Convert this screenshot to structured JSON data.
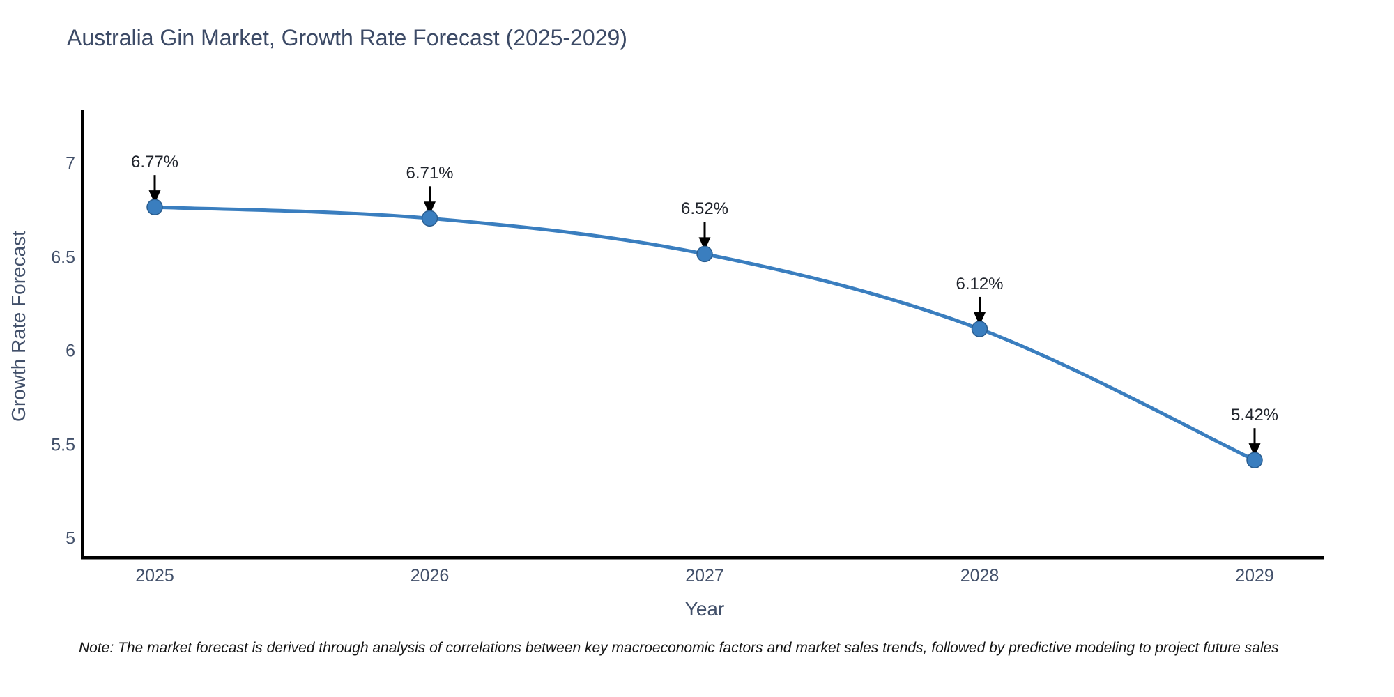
{
  "title": "Australia Gin Market, Growth Rate Forecast (2025-2029)",
  "footnote": "Note: The market forecast is derived through analysis of correlations between key macroeconomic factors and market sales trends, followed by predictive modeling to project future sales",
  "chart_data": {
    "type": "line",
    "title": "Australia Gin Market, Growth Rate Forecast (2025-2029)",
    "xlabel": "Year",
    "ylabel": "Growth Rate Forecast",
    "categories": [
      "2025",
      "2026",
      "2027",
      "2028",
      "2029"
    ],
    "series": [
      {
        "name": "Growth Rate Forecast",
        "values": [
          6.77,
          6.71,
          6.52,
          6.12,
          5.42
        ]
      }
    ],
    "point_labels": [
      "6.77%",
      "6.71%",
      "6.52%",
      "6.12%",
      "5.42%"
    ],
    "yticks": [
      "5",
      "5.5",
      "6",
      "6.5",
      "7"
    ],
    "ytick_values": [
      5,
      5.5,
      6,
      6.5,
      7
    ],
    "ylim": [
      4.9,
      7.28
    ],
    "grid": false,
    "legend_position": "none",
    "annotations_style": "value labels with downward black arrows to each point",
    "colors": {
      "line": "#3a7ebf",
      "marker_fill": "#3a7ebf",
      "marker_edge": "#2a5d8f",
      "arrow": "#000000",
      "axis_line": "#000000",
      "title_text": "#3c4a66",
      "tick_text": "#42506a",
      "annotation_text": "#20242c",
      "note_text": "#141414"
    }
  }
}
